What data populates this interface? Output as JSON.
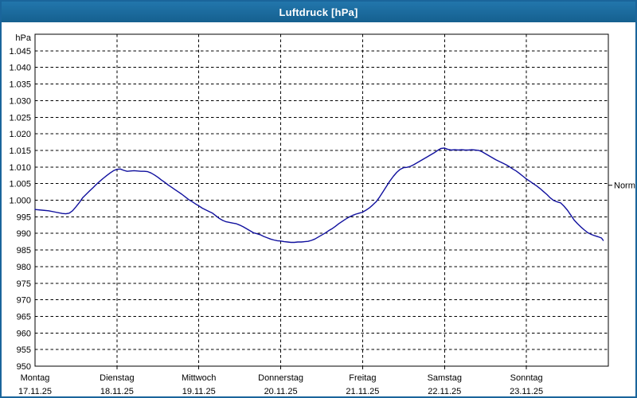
{
  "window": {
    "title": "Luftdruck [hPa]"
  },
  "colors": {
    "titlebar": "#1b6ba0",
    "window_border": "#1a659b",
    "curve": "#10109e",
    "grid": "#000000",
    "text": "#000000",
    "plot_bg": "#ffffff"
  },
  "chart_data": {
    "type": "line",
    "title": "Luftdruck [hPa]",
    "unit_label": "hPa",
    "ylabel": "hPa",
    "xlabel": "",
    "ylim": [
      950,
      1050
    ],
    "x_hours_total": 168,
    "grid": "dashed",
    "legend_position": "none",
    "y_ticks": [
      {
        "v": 1045,
        "label": "1.045"
      },
      {
        "v": 1040,
        "label": "1.040"
      },
      {
        "v": 1035,
        "label": "1.035"
      },
      {
        "v": 1030,
        "label": "1.030"
      },
      {
        "v": 1025,
        "label": "1.025"
      },
      {
        "v": 1020,
        "label": "1.020"
      },
      {
        "v": 1015,
        "label": "1.015"
      },
      {
        "v": 1010,
        "label": "1.010"
      },
      {
        "v": 1005,
        "label": "1.005"
      },
      {
        "v": 1000,
        "label": "1.000"
      },
      {
        "v": 995,
        "label": "995"
      },
      {
        "v": 990,
        "label": "990"
      },
      {
        "v": 985,
        "label": "985"
      },
      {
        "v": 980,
        "label": "980"
      },
      {
        "v": 975,
        "label": "975"
      },
      {
        "v": 970,
        "label": "970"
      },
      {
        "v": 965,
        "label": "965"
      },
      {
        "v": 960,
        "label": "960"
      },
      {
        "v": 955,
        "label": "955"
      },
      {
        "v": 950,
        "label": "950"
      }
    ],
    "x_days": [
      {
        "name": "Montag",
        "date": "17.11.25"
      },
      {
        "name": "Dienstag",
        "date": "18.11.25"
      },
      {
        "name": "Mittwoch",
        "date": "19.11.25"
      },
      {
        "name": "Donnerstag",
        "date": "20.11.25"
      },
      {
        "name": "Freitag",
        "date": "21.11.25"
      },
      {
        "name": "Samstag",
        "date": "22.11.25"
      },
      {
        "name": "Sonntag",
        "date": "23.11.25"
      }
    ],
    "normal_marker": {
      "label": "Normal",
      "value": 1004.5
    },
    "series": [
      {
        "name": "Luftdruck",
        "points": [
          [
            0,
            997.2
          ],
          [
            2,
            997.0
          ],
          [
            4,
            996.8
          ],
          [
            6,
            996.4
          ],
          [
            8,
            996.0
          ],
          [
            9,
            995.9
          ],
          [
            10,
            996.1
          ],
          [
            11,
            996.8
          ],
          [
            12,
            998.0
          ],
          [
            13,
            999.3
          ],
          [
            14,
            1000.8
          ],
          [
            15,
            1001.8
          ],
          [
            16,
            1002.8
          ],
          [
            17,
            1003.8
          ],
          [
            18,
            1004.8
          ],
          [
            19,
            1005.7
          ],
          [
            20,
            1006.6
          ],
          [
            21,
            1007.4
          ],
          [
            22,
            1008.2
          ],
          [
            23,
            1008.9
          ],
          [
            24,
            1009.3
          ],
          [
            25,
            1009.4
          ],
          [
            26,
            1009.0
          ],
          [
            27,
            1008.7
          ],
          [
            28,
            1008.8
          ],
          [
            29,
            1008.9
          ],
          [
            30,
            1008.8
          ],
          [
            31,
            1008.7
          ],
          [
            32,
            1008.7
          ],
          [
            33,
            1008.6
          ],
          [
            34,
            1008.2
          ],
          [
            35,
            1007.6
          ],
          [
            36,
            1006.9
          ],
          [
            37,
            1006.1
          ],
          [
            38,
            1005.4
          ],
          [
            39,
            1004.6
          ],
          [
            40,
            1003.9
          ],
          [
            41,
            1003.2
          ],
          [
            42,
            1002.5
          ],
          [
            43,
            1001.8
          ],
          [
            44,
            1001.0
          ],
          [
            45,
            1000.2
          ],
          [
            46,
            999.6
          ],
          [
            47,
            998.9
          ],
          [
            48,
            998.3
          ],
          [
            49,
            997.6
          ],
          [
            50,
            997.1
          ],
          [
            51,
            996.6
          ],
          [
            52,
            996.1
          ],
          [
            53,
            995.3
          ],
          [
            54,
            994.5
          ],
          [
            55,
            993.9
          ],
          [
            56,
            993.5
          ],
          [
            57,
            993.3
          ],
          [
            58,
            993.1
          ],
          [
            59,
            992.9
          ],
          [
            60,
            992.5
          ],
          [
            61,
            992.0
          ],
          [
            62,
            991.4
          ],
          [
            63,
            990.8
          ],
          [
            64,
            990.2
          ],
          [
            65,
            989.9
          ],
          [
            66,
            989.6
          ],
          [
            67,
            989.1
          ],
          [
            68,
            988.7
          ],
          [
            69,
            988.3
          ],
          [
            70,
            988.0
          ],
          [
            71,
            987.8
          ],
          [
            72,
            987.7
          ],
          [
            73,
            987.5
          ],
          [
            74,
            987.4
          ],
          [
            75,
            987.3
          ],
          [
            76,
            987.3
          ],
          [
            77,
            987.4
          ],
          [
            78,
            987.4
          ],
          [
            79,
            987.5
          ],
          [
            80,
            987.6
          ],
          [
            81,
            987.9
          ],
          [
            82,
            988.3
          ],
          [
            83,
            988.9
          ],
          [
            84,
            989.5
          ],
          [
            85,
            990.1
          ],
          [
            86,
            990.8
          ],
          [
            87,
            991.4
          ],
          [
            88,
            992.1
          ],
          [
            89,
            992.9
          ],
          [
            90,
            993.6
          ],
          [
            91,
            994.3
          ],
          [
            92,
            994.9
          ],
          [
            93,
            995.4
          ],
          [
            94,
            995.8
          ],
          [
            95,
            996.1
          ],
          [
            96,
            996.4
          ],
          [
            97,
            997.0
          ],
          [
            98,
            997.7
          ],
          [
            99,
            998.6
          ],
          [
            100,
            999.6
          ],
          [
            101,
            1001.0
          ],
          [
            102,
            1002.6
          ],
          [
            103,
            1004.2
          ],
          [
            104,
            1005.8
          ],
          [
            105,
            1007.2
          ],
          [
            106,
            1008.4
          ],
          [
            107,
            1009.3
          ],
          [
            108,
            1009.8
          ],
          [
            109,
            1009.9
          ],
          [
            110,
            1010.2
          ],
          [
            111,
            1010.7
          ],
          [
            112,
            1011.3
          ],
          [
            113,
            1011.9
          ],
          [
            114,
            1012.5
          ],
          [
            115,
            1013.1
          ],
          [
            116,
            1013.7
          ],
          [
            117,
            1014.3
          ],
          [
            118,
            1015.0
          ],
          [
            119,
            1015.6
          ],
          [
            120,
            1015.7
          ],
          [
            121,
            1015.3
          ],
          [
            122,
            1015.1
          ],
          [
            123,
            1015.2
          ],
          [
            124,
            1015.1
          ],
          [
            125,
            1015.2
          ],
          [
            126,
            1015.1
          ],
          [
            127,
            1015.1
          ],
          [
            128,
            1015.2
          ],
          [
            129,
            1015.1
          ],
          [
            130,
            1015.0
          ],
          [
            131,
            1014.6
          ],
          [
            132,
            1014.0
          ],
          [
            133,
            1013.4
          ],
          [
            134,
            1012.8
          ],
          [
            135,
            1012.2
          ],
          [
            136,
            1011.7
          ],
          [
            137,
            1011.2
          ],
          [
            138,
            1010.7
          ],
          [
            139,
            1010.1
          ],
          [
            140,
            1009.4
          ],
          [
            141,
            1008.8
          ],
          [
            142,
            1008.0
          ],
          [
            143,
            1007.2
          ],
          [
            144,
            1006.4
          ],
          [
            145,
            1005.7
          ],
          [
            146,
            1005.0
          ],
          [
            147,
            1004.3
          ],
          [
            148,
            1003.5
          ],
          [
            149,
            1002.6
          ],
          [
            150,
            1001.7
          ],
          [
            151,
            1000.7
          ],
          [
            152,
            999.9
          ],
          [
            153,
            999.5
          ],
          [
            154,
            999.2
          ],
          [
            155,
            998.2
          ],
          [
            156,
            997.0
          ],
          [
            157,
            995.5
          ],
          [
            158,
            994.0
          ],
          [
            159,
            992.9
          ],
          [
            160,
            991.9
          ],
          [
            161,
            991.0
          ],
          [
            162,
            990.2
          ],
          [
            163,
            989.7
          ],
          [
            164,
            989.3
          ],
          [
            165,
            989.0
          ],
          [
            166,
            988.6
          ],
          [
            166.5,
            987.9
          ]
        ]
      }
    ]
  }
}
